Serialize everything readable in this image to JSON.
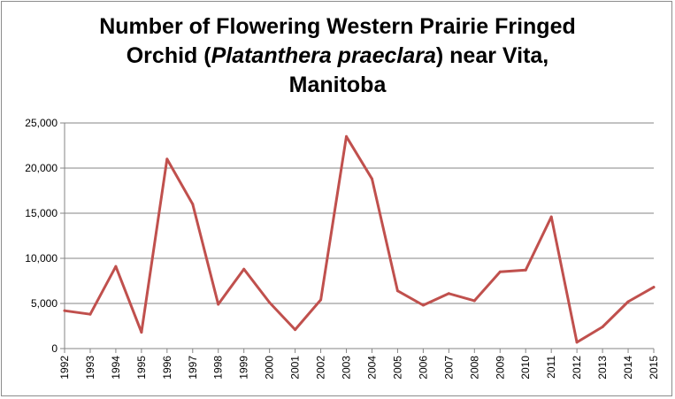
{
  "chart_data": {
    "type": "line",
    "title_lines": [
      [
        "Number of Flowering Western Prairie Fringed",
        ""
      ],
      [
        "Orchid (",
        "Platanthera praeclara",
        ") near Vita,"
      ],
      [
        "Manitoba",
        ""
      ]
    ],
    "title": "Number of Flowering Western Prairie Fringed Orchid (Platanthera praeclara) near Vita, Manitoba",
    "xlabel": "",
    "ylabel": "",
    "categories": [
      "1992",
      "1993",
      "1994",
      "1995",
      "1996",
      "1997",
      "1998",
      "1999",
      "2000",
      "2001",
      "2002",
      "2003",
      "2004",
      "2005",
      "2006",
      "2007",
      "2008",
      "2009",
      "2010",
      "2011",
      "2012",
      "2013",
      "2014",
      "2015"
    ],
    "series": [
      {
        "color": "#c0504d",
        "values": [
          4200,
          3800,
          9100,
          1800,
          21000,
          16000,
          4900,
          8800,
          5100,
          2100,
          5400,
          23500,
          18800,
          6400,
          4800,
          6100,
          5300,
          8500,
          8700,
          14600,
          700,
          2400,
          5200,
          6800
        ]
      }
    ],
    "ylim": [
      0,
      25000
    ],
    "yticks": [
      0,
      5000,
      10000,
      15000,
      20000,
      25000
    ],
    "ytick_labels": [
      "0",
      "5,000",
      "10,000",
      "15,000",
      "20,000",
      "25,000"
    ],
    "grid": true,
    "legend": "none"
  }
}
